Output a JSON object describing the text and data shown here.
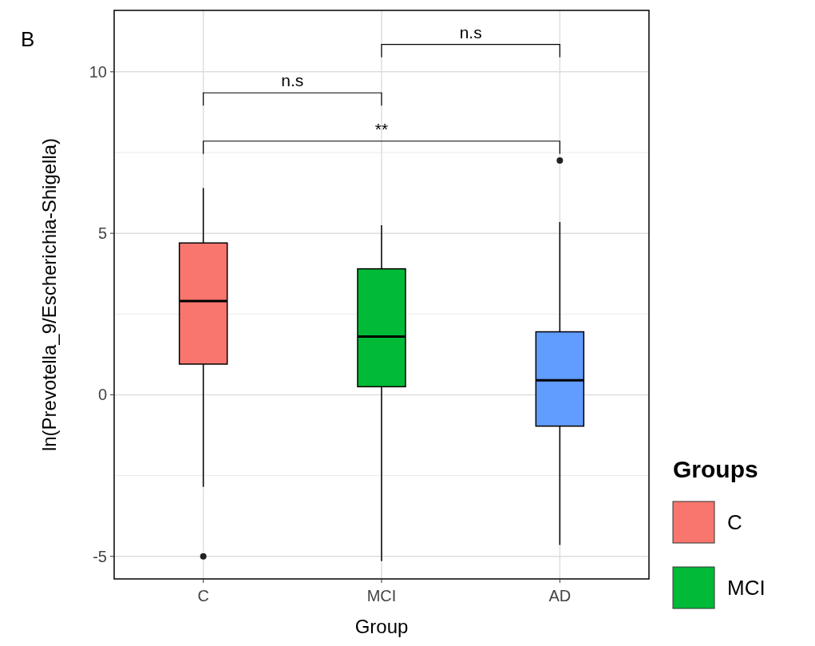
{
  "chart_data": {
    "type": "box",
    "title": "B",
    "xlabel": "Group",
    "ylabel": "ln(Prevotella_9/Escherichia-Shigella)",
    "legend_title": "Groups",
    "categories": [
      "C",
      "MCI",
      "AD"
    ],
    "series": [
      {
        "name": "C",
        "color": "#f8766d",
        "boxes": [
          {
            "low": -2.85,
            "q1": 0.95,
            "median": 2.9,
            "q3": 4.7,
            "high": 6.4,
            "outliers": [
              -5.0
            ]
          },
          null,
          null
        ]
      },
      {
        "name": "MCI",
        "color": "#00ba38",
        "boxes": [
          null,
          {
            "low": -5.15,
            "q1": 0.25,
            "median": 1.8,
            "q3": 3.9,
            "high": 5.25
          },
          null
        ]
      },
      {
        "color": "#619cff",
        "boxes": [
          null,
          null,
          {
            "low": -4.65,
            "q1": -0.97,
            "median": 0.45,
            "q3": 1.95,
            "high": 5.35,
            "outliers": [
              7.25
            ]
          }
        ]
      }
    ],
    "ylim": [
      -5.7,
      11.9
    ],
    "yticks": [
      -5,
      0,
      5,
      10
    ],
    "grid": true,
    "legend": "right",
    "annotations": [
      "n.s",
      "n.s",
      "**"
    ]
  }
}
